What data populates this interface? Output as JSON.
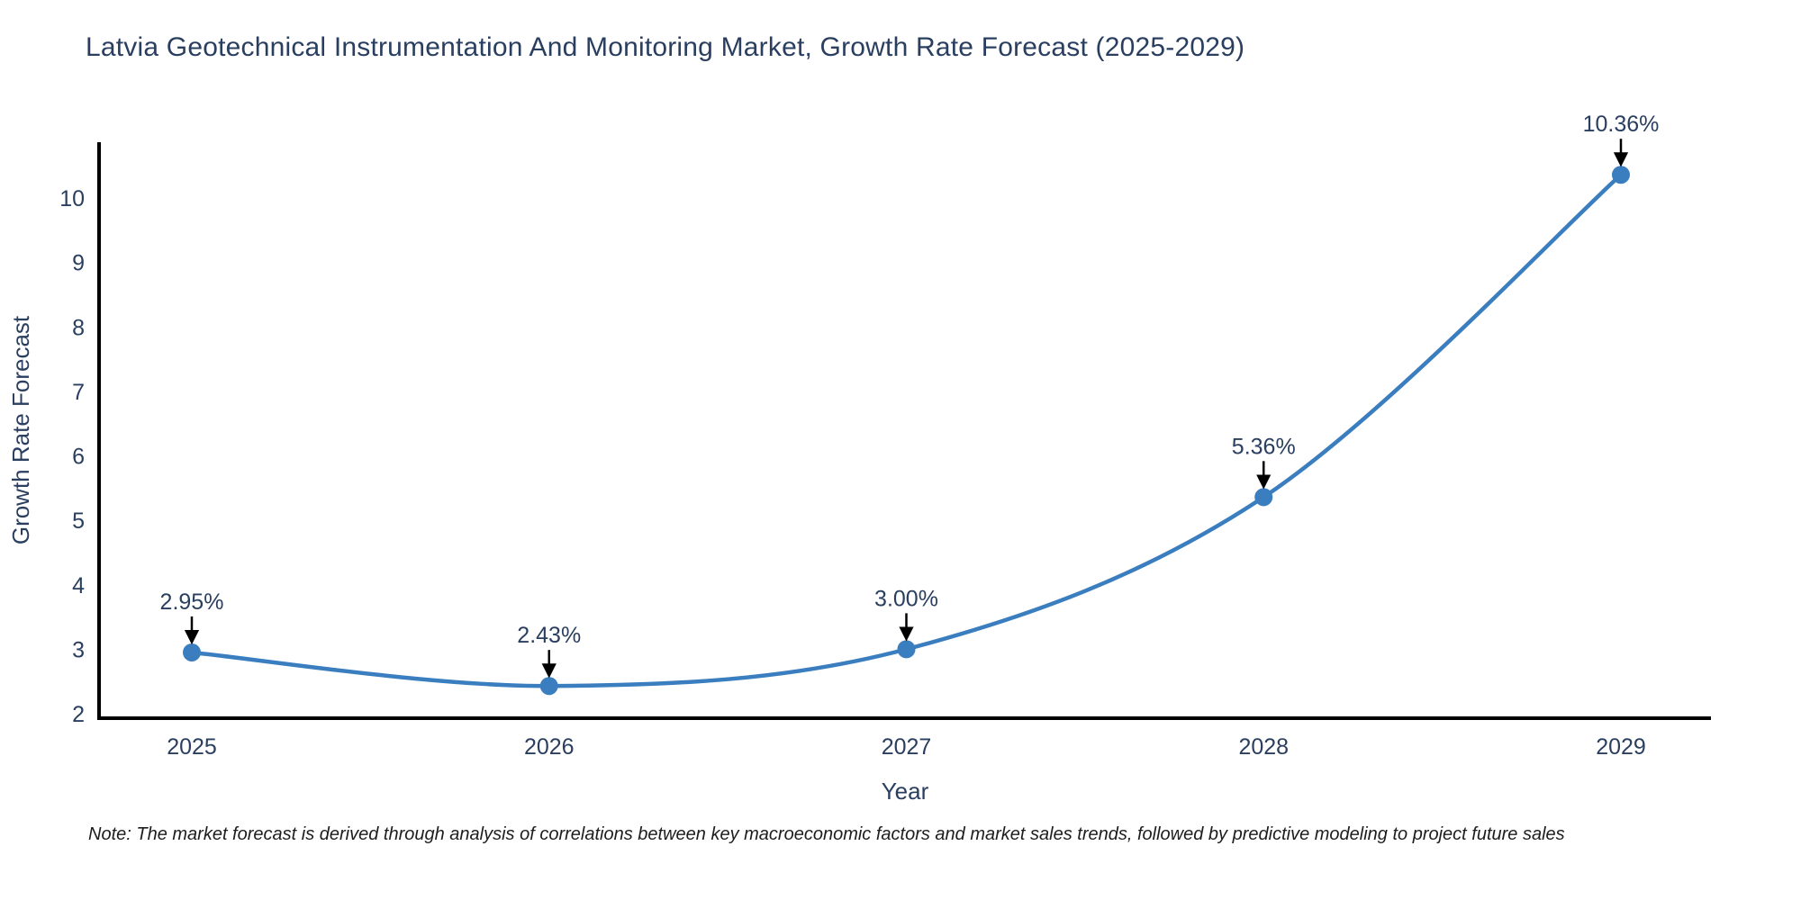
{
  "title": "Latvia Geotechnical Instrumentation And Monitoring Market, Growth Rate Forecast (2025-2029)",
  "note": "Note: The market forecast is derived through analysis of correlations between key macroeconomic factors and market sales trends, followed by predictive modeling to project future sales",
  "colors": {
    "line": "#3a7ebf",
    "marker": "#3a7ebf",
    "text": "#2a3f5f",
    "axis": "#000000",
    "arrow": "#000000"
  },
  "chart_data": {
    "type": "line",
    "line_shape": "spline",
    "x": [
      "2025",
      "2026",
      "2027",
      "2028",
      "2029"
    ],
    "values": [
      2.95,
      2.43,
      3.0,
      5.36,
      10.36
    ],
    "point_labels": [
      "2.95%",
      "2.43%",
      "3.00%",
      "5.36%",
      "10.36%"
    ],
    "title": "Latvia Geotechnical Instrumentation And Monitoring Market, Growth Rate Forecast (2025-2029)",
    "xlabel": "Year",
    "ylabel": "Growth Rate Forecast",
    "yticks": [
      2,
      3,
      4,
      5,
      6,
      7,
      8,
      9,
      10
    ],
    "ylim": [
      1.93,
      10.9
    ],
    "grid": false,
    "legend": false,
    "annotations": "each data point labeled with percentage above a downward black arrow"
  }
}
